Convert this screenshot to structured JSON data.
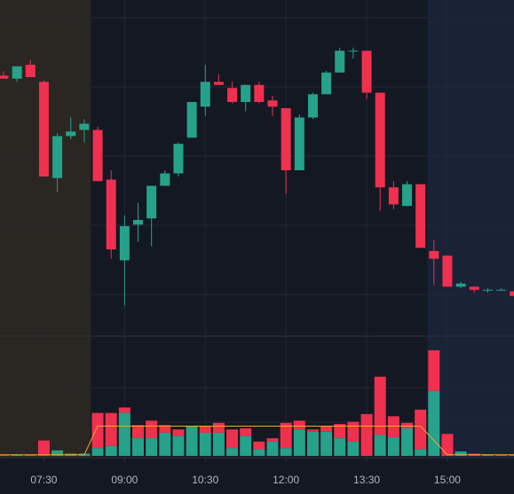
{
  "chart_data": {
    "type": "candlestick",
    "title": "",
    "session_shading": [
      {
        "from": "06:45",
        "to": "08:15",
        "kind": "pre-market"
      },
      {
        "from": "14:45",
        "to": "16:15",
        "kind": "post-market"
      }
    ],
    "x_ticks": [
      "07:30",
      "09:00",
      "10:30",
      "12:00",
      "13:30",
      "15:00"
    ],
    "ylim": [
      0,
      100
    ],
    "candles": [
      {
        "t": "06:45",
        "o": 78.5,
        "h": 80.0,
        "l": 77.5,
        "c": 77.5
      },
      {
        "t": "07:00",
        "o": 77.5,
        "h": 81.5,
        "l": 76.5,
        "c": 81.5
      },
      {
        "t": "07:15",
        "o": 82.0,
        "h": 83.5,
        "l": 78.0,
        "c": 78.0
      },
      {
        "t": "07:30",
        "o": 76.5,
        "h": 77.0,
        "l": 46.0,
        "c": 46.0
      },
      {
        "t": "07:45",
        "o": 45.5,
        "h": 60.0,
        "l": 41.0,
        "c": 59.0
      },
      {
        "t": "08:00",
        "o": 59.0,
        "h": 65.0,
        "l": 58.0,
        "c": 60.5
      },
      {
        "t": "08:15",
        "o": 61.0,
        "h": 64.5,
        "l": 57.0,
        "c": 63.0
      },
      {
        "t": "08:30",
        "o": 61.0,
        "h": 62.0,
        "l": 44.5,
        "c": 44.5
      },
      {
        "t": "08:45",
        "o": 45.0,
        "h": 48.0,
        "l": 19.5,
        "c": 22.5
      },
      {
        "t": "09:00",
        "o": 19.0,
        "h": 33.5,
        "l": 4.5,
        "c": 30.0
      },
      {
        "t": "09:15",
        "o": 30.5,
        "h": 37.5,
        "l": 25.0,
        "c": 32.0
      },
      {
        "t": "09:30",
        "o": 32.5,
        "h": 43.0,
        "l": 23.5,
        "c": 43.0
      },
      {
        "t": "09:45",
        "o": 43.0,
        "h": 48.0,
        "l": 43.0,
        "c": 47.0
      },
      {
        "t": "10:00",
        "o": 47.0,
        "h": 57.0,
        "l": 46.0,
        "c": 56.5
      },
      {
        "t": "10:15",
        "o": 58.5,
        "h": 70.0,
        "l": 58.5,
        "c": 70.0
      },
      {
        "t": "10:30",
        "o": 68.5,
        "h": 82.0,
        "l": 65.5,
        "c": 76.5
      },
      {
        "t": "10:45",
        "o": 76.5,
        "h": 79.0,
        "l": 75.5,
        "c": 75.5
      },
      {
        "t": "11:00",
        "o": 74.5,
        "h": 76.5,
        "l": 69.5,
        "c": 70.0
      },
      {
        "t": "11:15",
        "o": 70.0,
        "h": 75.5,
        "l": 67.0,
        "c": 75.5
      },
      {
        "t": "11:30",
        "o": 75.5,
        "h": 76.5,
        "l": 69.5,
        "c": 70.0
      },
      {
        "t": "11:45",
        "o": 70.5,
        "h": 72.0,
        "l": 65.5,
        "c": 68.5
      },
      {
        "t": "12:00",
        "o": 68.0,
        "h": 68.0,
        "l": 40.5,
        "c": 48.0
      },
      {
        "t": "12:15",
        "o": 48.0,
        "h": 66.0,
        "l": 48.0,
        "c": 65.0
      },
      {
        "t": "12:30",
        "o": 65.0,
        "h": 73.0,
        "l": 64.5,
        "c": 72.5
      },
      {
        "t": "12:45",
        "o": 72.5,
        "h": 80.0,
        "l": 72.5,
        "c": 79.5
      },
      {
        "t": "13:00",
        "o": 79.5,
        "h": 87.5,
        "l": 79.5,
        "c": 86.5
      },
      {
        "t": "13:15",
        "o": 86.5,
        "h": 87.5,
        "l": 84.0,
        "c": 86.5
      },
      {
        "t": "13:30",
        "o": 86.5,
        "h": 86.5,
        "l": 71.0,
        "c": 73.0
      },
      {
        "t": "13:45",
        "o": 73.0,
        "h": 73.0,
        "l": 35.0,
        "c": 42.5
      },
      {
        "t": "14:00",
        "o": 42.5,
        "h": 44.5,
        "l": 35.5,
        "c": 37.0
      },
      {
        "t": "14:15",
        "o": 36.5,
        "h": 44.5,
        "l": 36.5,
        "c": 43.5
      },
      {
        "t": "14:30",
        "o": 43.5,
        "h": 43.5,
        "l": 23.0,
        "c": 23.0
      },
      {
        "t": "14:45",
        "o": 22.0,
        "h": 25.5,
        "l": 11.0,
        "c": 19.5
      },
      {
        "t": "15:00",
        "o": 20.5,
        "h": 20.5,
        "l": 10.5,
        "c": 10.5
      },
      {
        "t": "15:15",
        "o": 10.5,
        "h": 12.0,
        "l": 10.0,
        "c": 11.5
      },
      {
        "t": "15:30",
        "o": 10.5,
        "h": 10.5,
        "l": 8.5,
        "c": 9.5
      },
      {
        "t": "15:45",
        "o": 9.5,
        "h": 10.0,
        "l": 8.5,
        "c": 9.5
      },
      {
        "t": "16:00",
        "o": 9.5,
        "h": 10.0,
        "l": 9.5,
        "c": 9.5
      },
      {
        "t": "16:15",
        "o": 9.0,
        "h": 9.0,
        "l": 7.5,
        "c": 7.5
      }
    ],
    "volume": {
      "ylim": [
        0,
        100
      ],
      "bars": [
        {
          "t": "06:45",
          "value": 1.0,
          "buy": 0.0
        },
        {
          "t": "07:00",
          "value": 1.0,
          "buy": 1.0
        },
        {
          "t": "07:15",
          "value": 1.0,
          "buy": 0.0
        },
        {
          "t": "07:30",
          "value": 14.0,
          "buy": 0.0
        },
        {
          "t": "07:45",
          "value": 5.0,
          "buy": 5.0
        },
        {
          "t": "08:00",
          "value": 2.0,
          "buy": 2.0
        },
        {
          "t": "08:15",
          "value": 2.0,
          "buy": 2.0
        },
        {
          "t": "08:30",
          "value": 39.0,
          "buy": 7.0
        },
        {
          "t": "08:45",
          "value": 39.0,
          "buy": 9.0
        },
        {
          "t": "09:00",
          "value": 44.0,
          "buy": 39.0
        },
        {
          "t": "09:15",
          "value": 28.0,
          "buy": 16.0
        },
        {
          "t": "09:30",
          "value": 32.0,
          "buy": 16.0
        },
        {
          "t": "09:45",
          "value": 28.0,
          "buy": 21.0
        },
        {
          "t": "10:00",
          "value": 24.0,
          "buy": 18.0
        },
        {
          "t": "10:15",
          "value": 27.0,
          "buy": 27.0
        },
        {
          "t": "10:30",
          "value": 27.0,
          "buy": 21.0
        },
        {
          "t": "10:45",
          "value": 30.0,
          "buy": 21.0
        },
        {
          "t": "11:00",
          "value": 24.0,
          "buy": 7.0
        },
        {
          "t": "11:15",
          "value": 25.0,
          "buy": 18.0
        },
        {
          "t": "11:30",
          "value": 13.0,
          "buy": 6.0
        },
        {
          "t": "11:45",
          "value": 16.0,
          "buy": 13.0
        },
        {
          "t": "12:00",
          "value": 30.0,
          "buy": 7.0
        },
        {
          "t": "12:15",
          "value": 32.0,
          "buy": 24.0
        },
        {
          "t": "12:30",
          "value": 24.0,
          "buy": 22.0
        },
        {
          "t": "12:45",
          "value": 27.0,
          "buy": 22.0
        },
        {
          "t": "13:00",
          "value": 29.0,
          "buy": 16.0
        },
        {
          "t": "13:15",
          "value": 31.0,
          "buy": 13.0
        },
        {
          "t": "13:30",
          "value": 38.0,
          "buy": 0.0
        },
        {
          "t": "13:45",
          "value": 72.0,
          "buy": 19.0
        },
        {
          "t": "14:00",
          "value": 36.0,
          "buy": 17.0
        },
        {
          "t": "14:15",
          "value": 30.0,
          "buy": 25.0
        },
        {
          "t": "14:30",
          "value": 42.0,
          "buy": 6.0
        },
        {
          "t": "14:45",
          "value": 96.0,
          "buy": 59.0
        },
        {
          "t": "15:00",
          "value": 20.0,
          "buy": 0.0
        },
        {
          "t": "15:15",
          "value": 4.0,
          "buy": 4.0
        },
        {
          "t": "15:30",
          "value": 2.0,
          "buy": 0.0
        },
        {
          "t": "15:45",
          "value": 1.0,
          "buy": 1.0
        },
        {
          "t": "16:00",
          "value": 1.0,
          "buy": 0.0
        },
        {
          "t": "16:15",
          "value": 1.0,
          "buy": 0.0
        }
      ],
      "average_line": [
        {
          "t": "06:45",
          "v": 1
        },
        {
          "t": "08:15",
          "v": 1
        },
        {
          "t": "08:30",
          "v": 27
        },
        {
          "t": "14:30",
          "v": 27
        },
        {
          "t": "15:00",
          "v": 1
        },
        {
          "t": "16:15",
          "v": 1
        }
      ]
    },
    "colors": {
      "background": "#141823",
      "pre_market_shade": "#2a2621",
      "post_market_shade": "#1a2236",
      "up": "#26a18a",
      "down": "#f0304f",
      "grid": "#222734",
      "separator": "#2e3340",
      "avg_line": "#f0a830",
      "tick_text": "#b2b5be"
    },
    "grid": true
  }
}
